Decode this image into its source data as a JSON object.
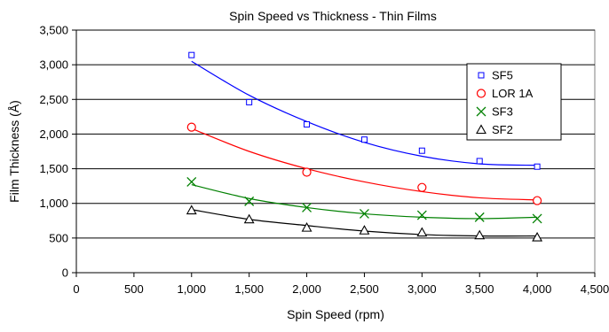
{
  "chart_data": {
    "type": "scatter",
    "title": "Spin Speed vs Thickness - Thin Films",
    "xlabel": "Spin Speed (rpm)",
    "ylabel": "Film Thickness (Å)",
    "xlim": [
      0,
      4500
    ],
    "ylim": [
      0,
      3500
    ],
    "x_ticks": [
      0,
      500,
      1000,
      1500,
      2000,
      2500,
      3000,
      3500,
      4000,
      4500
    ],
    "x_tick_labels": [
      "0",
      "500",
      "1,000",
      "1,500",
      "2,000",
      "2,500",
      "3,000",
      "3,500",
      "4,000",
      "4,500"
    ],
    "y_ticks": [
      0,
      500,
      1000,
      1500,
      2000,
      2500,
      3000,
      3500
    ],
    "y_tick_labels": [
      "0",
      "500",
      "1,000",
      "1,500",
      "2,000",
      "2,500",
      "3,000",
      "3,500"
    ],
    "grid": "horizontal",
    "legend_position": "top-right",
    "x": [
      1000,
      1500,
      2000,
      2500,
      3000,
      3500,
      4000
    ],
    "series": [
      {
        "name": "SF5",
        "marker": "square",
        "color": "#0000ff",
        "values": [
          3140,
          2460,
          2140,
          1920,
          1760,
          1610,
          1530
        ],
        "trend": [
          3050,
          2560,
          2180,
          1880,
          1680,
          1570,
          1550
        ]
      },
      {
        "name": "LOR 1A",
        "marker": "circle",
        "color": "#ff0000",
        "values": [
          2100,
          null,
          1450,
          null,
          1230,
          null,
          1040
        ],
        "trend": [
          2080,
          1750,
          1500,
          1310,
          1170,
          1080,
          1050
        ]
      },
      {
        "name": "SF3",
        "marker": "x",
        "color": "#008000",
        "values": [
          1310,
          1030,
          940,
          850,
          830,
          800,
          780
        ],
        "trend": [
          1270,
          1070,
          940,
          850,
          800,
          780,
          800
        ]
      },
      {
        "name": "SF2",
        "marker": "triangle",
        "color": "#000000",
        "values": [
          900,
          770,
          650,
          610,
          580,
          540,
          510
        ],
        "trend": [
          910,
          770,
          680,
          600,
          550,
          530,
          530
        ]
      }
    ]
  }
}
